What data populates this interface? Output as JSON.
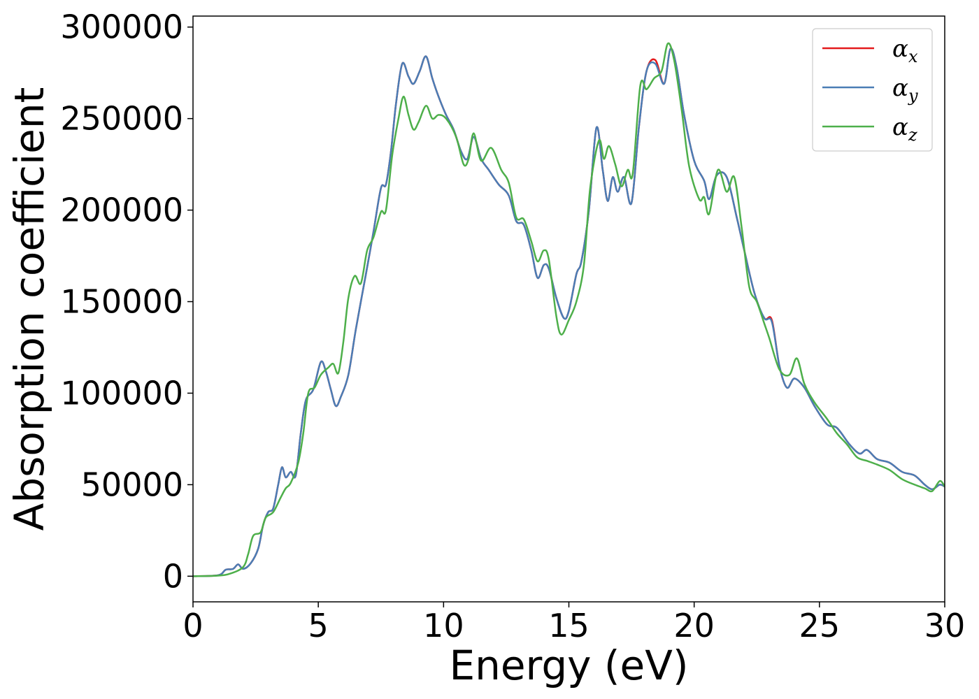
{
  "chart_data": {
    "type": "line",
    "title": "",
    "xlabel": "Energy (eV)",
    "ylabel": "Absorption coefficient",
    "xlim": [
      0,
      30
    ],
    "ylim": [
      -14000,
      306000
    ],
    "x_ticks": [
      "0",
      "5",
      "10",
      "15",
      "20",
      "25",
      "30"
    ],
    "y_ticks": [
      "0",
      "50000",
      "100000",
      "150000",
      "200000",
      "250000",
      "300000"
    ],
    "grid": false,
    "legend_position": "top-right",
    "series": [
      {
        "name": "α",
        "subscript": "x",
        "color": "#e41a1c",
        "points": [
          [
            0,
            0
          ],
          [
            1,
            500
          ],
          [
            1.3,
            3500
          ],
          [
            1.6,
            4000
          ],
          [
            1.8,
            6500
          ],
          [
            2.0,
            4000
          ],
          [
            2.3,
            7000
          ],
          [
            2.6,
            15000
          ],
          [
            2.8,
            28000
          ],
          [
            3.0,
            35000
          ],
          [
            3.2,
            37000
          ],
          [
            3.4,
            50000
          ],
          [
            3.55,
            59500
          ],
          [
            3.7,
            54000
          ],
          [
            3.9,
            57000
          ],
          [
            4.1,
            55000
          ],
          [
            4.3,
            78000
          ],
          [
            4.5,
            96000
          ],
          [
            4.8,
            102000
          ],
          [
            5.1,
            117000
          ],
          [
            5.3,
            112000
          ],
          [
            5.5,
            102000
          ],
          [
            5.7,
            93000
          ],
          [
            5.9,
            98000
          ],
          [
            6.2,
            110000
          ],
          [
            6.5,
            135000
          ],
          [
            6.9,
            165000
          ],
          [
            7.2,
            188000
          ],
          [
            7.5,
            212000
          ],
          [
            7.7,
            214000
          ],
          [
            7.9,
            232000
          ],
          [
            8.1,
            258000
          ],
          [
            8.35,
            280000
          ],
          [
            8.6,
            273000
          ],
          [
            8.8,
            269000
          ],
          [
            9.05,
            276000
          ],
          [
            9.3,
            284000
          ],
          [
            9.55,
            272000
          ],
          [
            9.8,
            262000
          ],
          [
            10.1,
            252000
          ],
          [
            10.4,
            244000
          ],
          [
            10.7,
            232000
          ],
          [
            10.95,
            228000
          ],
          [
            11.2,
            240000
          ],
          [
            11.5,
            228000
          ],
          [
            11.8,
            222000
          ],
          [
            12.2,
            214000
          ],
          [
            12.6,
            208000
          ],
          [
            12.9,
            194000
          ],
          [
            13.2,
            192000
          ],
          [
            13.5,
            178000
          ],
          [
            13.75,
            163000
          ],
          [
            14.0,
            170000
          ],
          [
            14.2,
            168000
          ],
          [
            14.5,
            152000
          ],
          [
            14.8,
            141000
          ],
          [
            15.0,
            145000
          ],
          [
            15.3,
            165000
          ],
          [
            15.5,
            172000
          ],
          [
            15.8,
            200000
          ],
          [
            16.1,
            245000
          ],
          [
            16.35,
            222000
          ],
          [
            16.55,
            205000
          ],
          [
            16.75,
            218000
          ],
          [
            16.95,
            210000
          ],
          [
            17.2,
            218000
          ],
          [
            17.5,
            204000
          ],
          [
            17.8,
            246000
          ],
          [
            18.1,
            276000
          ],
          [
            18.45,
            282000
          ],
          [
            18.8,
            269000
          ],
          [
            19.05,
            288000
          ],
          [
            19.3,
            278000
          ],
          [
            19.6,
            252000
          ],
          [
            20.0,
            227000
          ],
          [
            20.4,
            216000
          ],
          [
            20.6,
            206000
          ],
          [
            20.9,
            219000
          ],
          [
            21.3,
            218000
          ],
          [
            21.7,
            196000
          ],
          [
            22.0,
            178000
          ],
          [
            22.4,
            155000
          ],
          [
            22.8,
            141000
          ],
          [
            23.1,
            140000
          ],
          [
            23.4,
            115000
          ],
          [
            23.7,
            103000
          ],
          [
            24.0,
            108000
          ],
          [
            24.4,
            103000
          ],
          [
            24.8,
            93000
          ],
          [
            25.3,
            83000
          ],
          [
            25.7,
            81000
          ],
          [
            26.2,
            72000
          ],
          [
            26.6,
            67000
          ],
          [
            26.9,
            69000
          ],
          [
            27.3,
            64000
          ],
          [
            27.8,
            62000
          ],
          [
            28.3,
            57000
          ],
          [
            28.8,
            55000
          ],
          [
            29.2,
            50000
          ],
          [
            29.5,
            47500
          ],
          [
            29.8,
            50000
          ],
          [
            30,
            49000
          ]
        ]
      },
      {
        "name": "α",
        "subscript": "y",
        "color": "#4a7db5",
        "points": [
          [
            0,
            0
          ],
          [
            1,
            500
          ],
          [
            1.3,
            3500
          ],
          [
            1.6,
            4000
          ],
          [
            1.8,
            6500
          ],
          [
            2.0,
            4000
          ],
          [
            2.3,
            7000
          ],
          [
            2.6,
            15000
          ],
          [
            2.8,
            28000
          ],
          [
            3.0,
            35000
          ],
          [
            3.2,
            37000
          ],
          [
            3.4,
            50000
          ],
          [
            3.55,
            59500
          ],
          [
            3.7,
            54000
          ],
          [
            3.9,
            57000
          ],
          [
            4.1,
            55000
          ],
          [
            4.3,
            78000
          ],
          [
            4.5,
            96000
          ],
          [
            4.8,
            102000
          ],
          [
            5.1,
            117000
          ],
          [
            5.3,
            112000
          ],
          [
            5.5,
            102000
          ],
          [
            5.7,
            93000
          ],
          [
            5.9,
            98000
          ],
          [
            6.2,
            110000
          ],
          [
            6.5,
            135000
          ],
          [
            6.9,
            165000
          ],
          [
            7.2,
            188000
          ],
          [
            7.5,
            212000
          ],
          [
            7.7,
            214000
          ],
          [
            7.9,
            232000
          ],
          [
            8.1,
            258000
          ],
          [
            8.35,
            280000
          ],
          [
            8.6,
            273000
          ],
          [
            8.8,
            269000
          ],
          [
            9.05,
            276000
          ],
          [
            9.3,
            284000
          ],
          [
            9.55,
            272000
          ],
          [
            9.8,
            262000
          ],
          [
            10.1,
            252000
          ],
          [
            10.4,
            244000
          ],
          [
            10.7,
            232000
          ],
          [
            10.95,
            228000
          ],
          [
            11.2,
            240000
          ],
          [
            11.5,
            228000
          ],
          [
            11.8,
            222000
          ],
          [
            12.2,
            214000
          ],
          [
            12.6,
            208000
          ],
          [
            12.9,
            194000
          ],
          [
            13.2,
            192000
          ],
          [
            13.5,
            178000
          ],
          [
            13.75,
            163000
          ],
          [
            14.0,
            170000
          ],
          [
            14.2,
            168000
          ],
          [
            14.5,
            152000
          ],
          [
            14.8,
            141000
          ],
          [
            15.0,
            145000
          ],
          [
            15.3,
            165000
          ],
          [
            15.5,
            172000
          ],
          [
            15.8,
            200000
          ],
          [
            16.1,
            245000
          ],
          [
            16.35,
            222000
          ],
          [
            16.55,
            205000
          ],
          [
            16.75,
            218000
          ],
          [
            16.95,
            210000
          ],
          [
            17.2,
            218000
          ],
          [
            17.5,
            204000
          ],
          [
            17.8,
            246000
          ],
          [
            18.1,
            276000
          ],
          [
            18.45,
            280000
          ],
          [
            18.8,
            269000
          ],
          [
            19.05,
            288000
          ],
          [
            19.3,
            278000
          ],
          [
            19.6,
            252000
          ],
          [
            20.0,
            227000
          ],
          [
            20.4,
            216000
          ],
          [
            20.6,
            206000
          ],
          [
            20.9,
            219000
          ],
          [
            21.3,
            218000
          ],
          [
            21.7,
            196000
          ],
          [
            22.0,
            178000
          ],
          [
            22.4,
            155000
          ],
          [
            22.8,
            141000
          ],
          [
            23.1,
            139000
          ],
          [
            23.4,
            115000
          ],
          [
            23.7,
            103000
          ],
          [
            24.0,
            108000
          ],
          [
            24.4,
            103000
          ],
          [
            24.8,
            93000
          ],
          [
            25.3,
            83000
          ],
          [
            25.7,
            81000
          ],
          [
            26.2,
            72000
          ],
          [
            26.6,
            67000
          ],
          [
            26.9,
            69000
          ],
          [
            27.3,
            64000
          ],
          [
            27.8,
            62000
          ],
          [
            28.3,
            57000
          ],
          [
            28.8,
            55000
          ],
          [
            29.2,
            50000
          ],
          [
            29.5,
            47500
          ],
          [
            29.8,
            50000
          ],
          [
            30,
            49000
          ]
        ]
      },
      {
        "name": "α",
        "subscript": "z",
        "color": "#4daf4a",
        "points": [
          [
            0,
            0
          ],
          [
            1,
            300
          ],
          [
            1.5,
            1500
          ],
          [
            2.0,
            5000
          ],
          [
            2.2,
            12000
          ],
          [
            2.4,
            22000
          ],
          [
            2.7,
            24000
          ],
          [
            2.9,
            32000
          ],
          [
            3.2,
            35000
          ],
          [
            3.5,
            43000
          ],
          [
            3.7,
            48000
          ],
          [
            3.9,
            51000
          ],
          [
            4.2,
            62000
          ],
          [
            4.4,
            78000
          ],
          [
            4.6,
            100000
          ],
          [
            4.85,
            103000
          ],
          [
            5.1,
            110000
          ],
          [
            5.4,
            114000
          ],
          [
            5.6,
            116000
          ],
          [
            5.8,
            111000
          ],
          [
            6.0,
            128000
          ],
          [
            6.2,
            152000
          ],
          [
            6.45,
            164000
          ],
          [
            6.7,
            160000
          ],
          [
            6.95,
            178000
          ],
          [
            7.2,
            185000
          ],
          [
            7.5,
            199000
          ],
          [
            7.7,
            200000
          ],
          [
            7.95,
            230000
          ],
          [
            8.2,
            250000
          ],
          [
            8.4,
            262000
          ],
          [
            8.6,
            252000
          ],
          [
            8.8,
            244000
          ],
          [
            9.0,
            248000
          ],
          [
            9.3,
            257000
          ],
          [
            9.55,
            250000
          ],
          [
            9.8,
            252000
          ],
          [
            10.1,
            250000
          ],
          [
            10.5,
            240000
          ],
          [
            10.8,
            225000
          ],
          [
            11.0,
            228000
          ],
          [
            11.2,
            242000
          ],
          [
            11.5,
            227000
          ],
          [
            11.9,
            234000
          ],
          [
            12.3,
            222000
          ],
          [
            12.6,
            215000
          ],
          [
            12.9,
            196000
          ],
          [
            13.2,
            195000
          ],
          [
            13.5,
            183000
          ],
          [
            13.75,
            172000
          ],
          [
            14.0,
            178000
          ],
          [
            14.2,
            173000
          ],
          [
            14.5,
            142000
          ],
          [
            14.7,
            132000
          ],
          [
            15.0,
            140000
          ],
          [
            15.3,
            150000
          ],
          [
            15.6,
            170000
          ],
          [
            15.85,
            212000
          ],
          [
            16.2,
            238000
          ],
          [
            16.4,
            228000
          ],
          [
            16.6,
            235000
          ],
          [
            16.85,
            225000
          ],
          [
            17.1,
            213000
          ],
          [
            17.35,
            222000
          ],
          [
            17.55,
            220000
          ],
          [
            17.85,
            268000
          ],
          [
            18.1,
            266000
          ],
          [
            18.4,
            272000
          ],
          [
            18.7,
            276000
          ],
          [
            18.95,
            291000
          ],
          [
            19.2,
            282000
          ],
          [
            19.5,
            255000
          ],
          [
            19.8,
            224000
          ],
          [
            20.2,
            206000
          ],
          [
            20.4,
            207000
          ],
          [
            20.6,
            198000
          ],
          [
            20.95,
            222000
          ],
          [
            21.3,
            210000
          ],
          [
            21.6,
            218000
          ],
          [
            21.9,
            190000
          ],
          [
            22.2,
            158000
          ],
          [
            22.5,
            150000
          ],
          [
            22.8,
            138000
          ],
          [
            23.0,
            130000
          ],
          [
            23.4,
            113000
          ],
          [
            23.8,
            110000
          ],
          [
            24.1,
            119000
          ],
          [
            24.4,
            105000
          ],
          [
            24.8,
            95000
          ],
          [
            25.3,
            86000
          ],
          [
            25.7,
            78000
          ],
          [
            26.1,
            72000
          ],
          [
            26.5,
            65000
          ],
          [
            26.9,
            63000
          ],
          [
            27.3,
            61000
          ],
          [
            27.8,
            58000
          ],
          [
            28.3,
            53000
          ],
          [
            28.8,
            50000
          ],
          [
            29.2,
            48000
          ],
          [
            29.5,
            46500
          ],
          [
            29.8,
            52000
          ],
          [
            30,
            49000
          ]
        ]
      }
    ]
  }
}
